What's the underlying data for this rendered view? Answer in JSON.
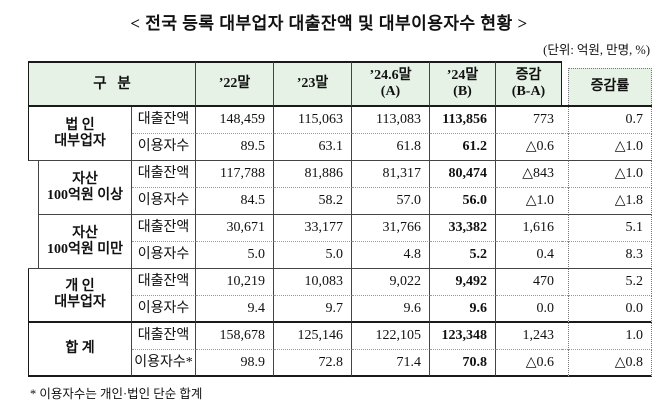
{
  "title": "< 전국 등록 대부업자 대출잔액 및 대부이용자수 현황 >",
  "unit_note": "(단위: 억원, 만명, %)",
  "colors": {
    "header_bg": "#E6F2E6"
  },
  "table": {
    "header": {
      "category": "구   분",
      "col_22": "’22말",
      "col_23": "’23말",
      "col_a_line1": "’24.6말",
      "col_a_line2": "(A)",
      "col_b_line1": "’24말",
      "col_b_line2": "(B)",
      "col_diff_line1": "증감",
      "col_diff_line2": "(B-A)",
      "col_rate": "증감률"
    },
    "groups": [
      {
        "label_line1": "법 인",
        "label_line2": "대부업자",
        "rows": [
          {
            "metric": "대출잔액",
            "values": [
              "148,459",
              "115,063",
              "113,083",
              "113,856",
              "773",
              "0.7"
            ]
          },
          {
            "metric": "이용자수",
            "values": [
              "89.5",
              "63.1",
              "61.8",
              "61.2",
              "△0.6",
              "△1.0"
            ]
          }
        ]
      },
      {
        "label_line1": "자산",
        "label_line2": "100억원 이상",
        "rows": [
          {
            "metric": "대출잔액",
            "values": [
              "117,788",
              "81,886",
              "81,317",
              "80,474",
              "△843",
              "△1.0"
            ]
          },
          {
            "metric": "이용자수",
            "values": [
              "84.5",
              "58.2",
              "57.0",
              "56.0",
              "△1.0",
              "△1.8"
            ]
          }
        ]
      },
      {
        "label_line1": "자산",
        "label_line2": "100억원 미만",
        "rows": [
          {
            "metric": "대출잔액",
            "values": [
              "30,671",
              "33,177",
              "31,766",
              "33,382",
              "1,616",
              "5.1"
            ]
          },
          {
            "metric": "이용자수",
            "values": [
              "5.0",
              "5.0",
              "4.8",
              "5.2",
              "0.4",
              "8.3"
            ]
          }
        ]
      },
      {
        "label_line1": "개 인",
        "label_line2": "대부업자",
        "rows": [
          {
            "metric": "대출잔액",
            "values": [
              "10,219",
              "10,083",
              "9,022",
              "9,492",
              "470",
              "5.2"
            ]
          },
          {
            "metric": "이용자수",
            "values": [
              "9.4",
              "9.7",
              "9.6",
              "9.6",
              "0.0",
              "0.0"
            ]
          }
        ]
      },
      {
        "label_line1": "합 계",
        "label_line2": "",
        "rows": [
          {
            "metric": "대출잔액",
            "values": [
              "158,678",
              "125,146",
              "122,105",
              "123,348",
              "1,243",
              "1.0"
            ]
          },
          {
            "metric": "이용자수*",
            "values": [
              "98.9",
              "72.8",
              "71.4",
              "70.8",
              "△0.6",
              "△0.8"
            ]
          }
        ]
      }
    ]
  },
  "footnote": "* 이용자수는 개인·법인 단순 합계"
}
